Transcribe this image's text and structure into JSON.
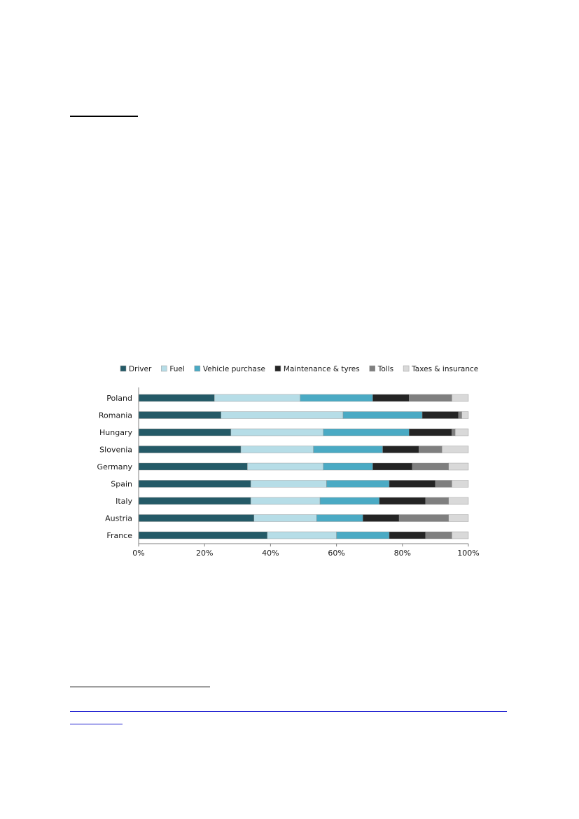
{
  "colors": {
    "driver": "#245a67",
    "fuel": "#b6dde7",
    "vehicle_purchase": "#4aaac4",
    "maintenance_tyres": "#242424",
    "tolls": "#7f7f7f",
    "taxes_insurance": "#d9d9d9",
    "axis": "#808080",
    "heading_rule": "#000000",
    "link": "#1f1fd0"
  },
  "chart_data": {
    "type": "bar",
    "orientation": "horizontal",
    "stacked": true,
    "percent": true,
    "title": "",
    "xlabel": "",
    "ylabel": "",
    "xlim": [
      0,
      100
    ],
    "grid": false,
    "legend_position": "top",
    "categories": [
      "Poland",
      "Romania",
      "Hungary",
      "Slovenia",
      "Germany",
      "Spain",
      "Italy",
      "Austria",
      "France"
    ],
    "x_ticks": [
      "0%",
      "20%",
      "40%",
      "60%",
      "80%",
      "100%"
    ],
    "series": [
      {
        "name": "Driver",
        "color_key": "driver",
        "values": [
          23,
          25,
          28,
          31,
          33,
          34,
          34,
          35,
          39
        ]
      },
      {
        "name": "Fuel",
        "color_key": "fuel",
        "values": [
          26,
          37,
          28,
          22,
          23,
          23,
          21,
          19,
          21
        ]
      },
      {
        "name": "Vehicle purchase",
        "color_key": "vehicle_purchase",
        "values": [
          22,
          24,
          26,
          21,
          15,
          19,
          18,
          14,
          16
        ]
      },
      {
        "name": "Maintenance & tyres",
        "color_key": "maintenance_tyres",
        "values": [
          11,
          11,
          13,
          11,
          12,
          14,
          14,
          11,
          11
        ]
      },
      {
        "name": "Tolls",
        "color_key": "tolls",
        "values": [
          13,
          1,
          1,
          7,
          11,
          5,
          7,
          15,
          8
        ]
      },
      {
        "name": "Taxes & insurance",
        "color_key": "taxes_insurance",
        "values": [
          5,
          2,
          4,
          8,
          6,
          5,
          6,
          6,
          5
        ]
      }
    ]
  }
}
